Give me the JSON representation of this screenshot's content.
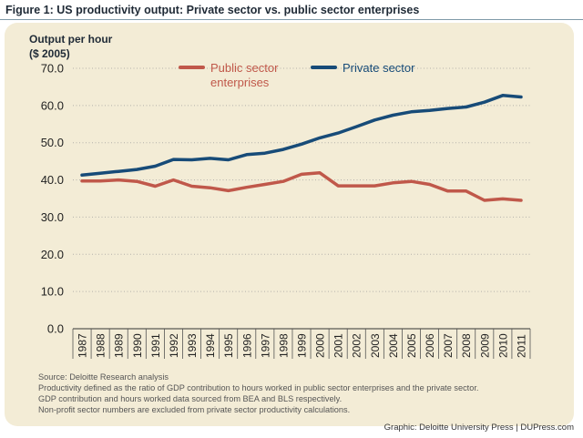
{
  "figure": {
    "title": "Figure 1:  US productivity output: Private sector vs. public sector enterprises",
    "notes": [
      "Source: Deloitte Research analysis",
      "Productivity defined as the ratio of GDP contribution to hours worked in public sector enterprises and the private sector.",
      "GDP contribution and hours worked data sourced from BEA and BLS respectively.",
      "Non-profit sector numbers are excluded from private sector productivity calculations."
    ],
    "credit": "Graphic: Deloitte University Press | DUPress.com"
  },
  "colors": {
    "panel": "#f3ecd6",
    "public": "#c0584a",
    "private": "#174b78",
    "grid": "#b3b0aa"
  },
  "chart_data": {
    "type": "line",
    "ylabel_lines": [
      "Output per hour",
      "($ 2005)"
    ],
    "ylim": [
      0,
      70
    ],
    "yticks": [
      "0.0",
      "10.0",
      "20.0",
      "30.0",
      "40.0",
      "50.0",
      "60.0",
      "70.0"
    ],
    "grid": "dotted horizontal",
    "legend_position": "top-center",
    "categories": [
      "1987",
      "1988",
      "1989",
      "1990",
      "1991",
      "1992",
      "1993",
      "1994",
      "1995",
      "1996",
      "1997",
      "1998",
      "1999",
      "2000",
      "2001",
      "2002",
      "2003",
      "2004",
      "2005",
      "2006",
      "2007",
      "2008",
      "2009",
      "2010",
      "2011"
    ],
    "series": [
      {
        "name": "Public sector enterprises",
        "legend_lines": [
          "Public sector",
          "enterprises"
        ],
        "color": "#c0584a",
        "values": [
          39.7,
          39.7,
          40.0,
          39.6,
          38.3,
          40.0,
          38.3,
          37.9,
          37.1,
          38.0,
          38.8,
          39.6,
          41.5,
          41.9,
          38.4,
          38.4,
          38.4,
          39.2,
          39.6,
          38.8,
          37.0,
          37.0,
          34.5,
          34.9,
          34.5
        ]
      },
      {
        "name": "Private sector",
        "legend_lines": [
          "Private sector"
        ],
        "color": "#174b78",
        "values": [
          41.3,
          41.8,
          42.3,
          42.8,
          43.7,
          45.5,
          45.4,
          45.8,
          45.4,
          46.8,
          47.2,
          48.2,
          49.6,
          51.3,
          52.6,
          54.3,
          56.1,
          57.4,
          58.3,
          58.7,
          59.2,
          59.6,
          60.9,
          62.7,
          62.3
        ]
      }
    ]
  }
}
